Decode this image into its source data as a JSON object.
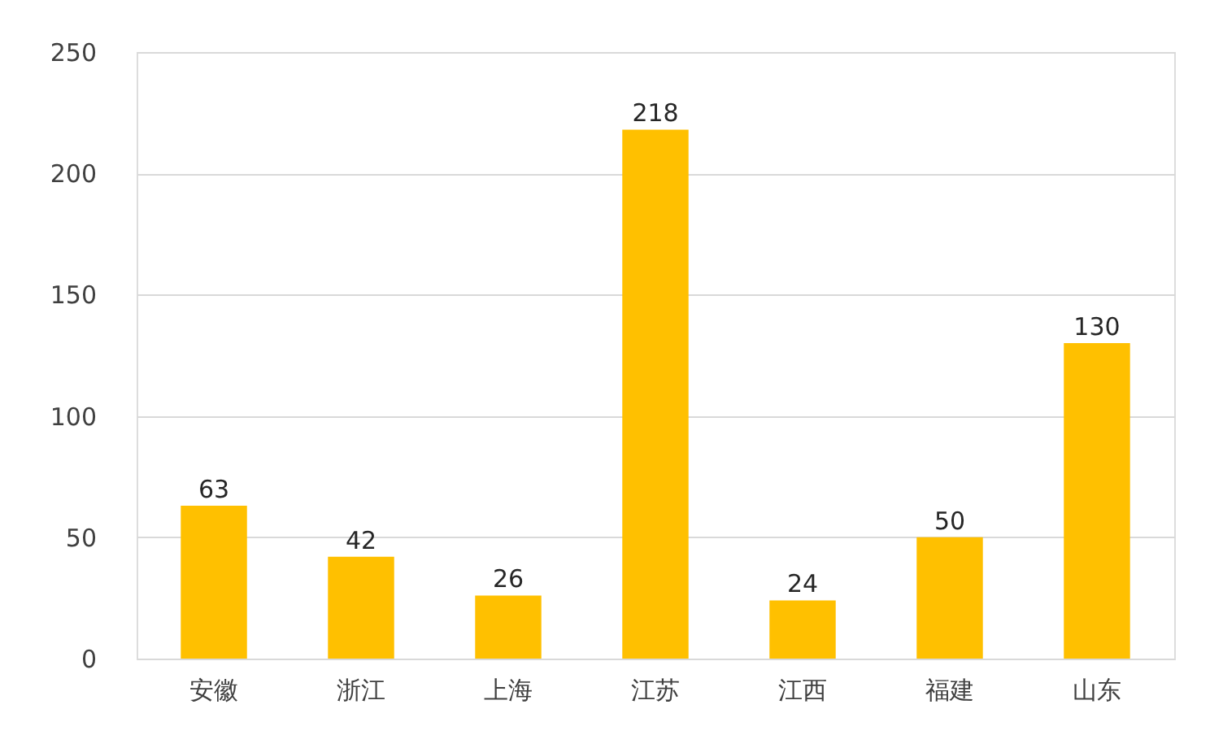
{
  "chart_data": {
    "type": "bar",
    "categories": [
      "安徽",
      "浙江",
      "上海",
      "江苏",
      "江西",
      "福建",
      "山东"
    ],
    "values": [
      63,
      42,
      26,
      218,
      24,
      50,
      130
    ],
    "color": "#ffc000",
    "ylim": [
      0,
      250
    ],
    "yticks": [
      0,
      50,
      100,
      150,
      200,
      250
    ],
    "grid": "y",
    "data_labels": true
  }
}
